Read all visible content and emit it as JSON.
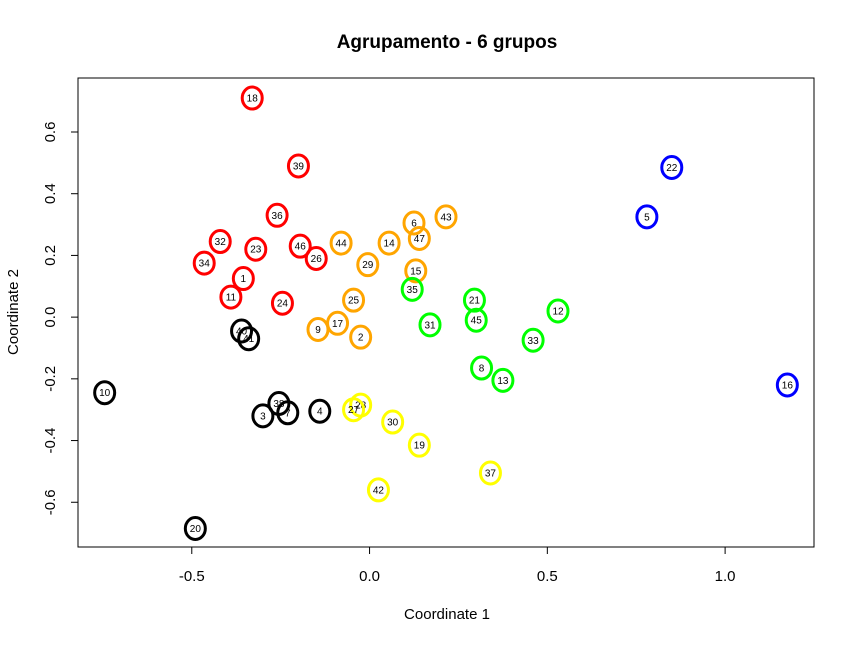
{
  "chart_data": {
    "type": "scatter",
    "title": "Agrupamento - 6 grupos",
    "xlabel": "Coordinate 1",
    "ylabel": "Coordinate 2",
    "xlim": [
      -0.82,
      1.25
    ],
    "ylim": [
      -0.745,
      0.775
    ],
    "x_ticks": [
      {
        "value": -0.5,
        "label": "-0.5"
      },
      {
        "value": 0.0,
        "label": "0.0"
      },
      {
        "value": 0.5,
        "label": "0.5"
      },
      {
        "value": 1.0,
        "label": "1.0"
      }
    ],
    "y_ticks": [
      {
        "value": -0.6,
        "label": "-0.6"
      },
      {
        "value": -0.4,
        "label": "-0.4"
      },
      {
        "value": -0.2,
        "label": "-0.2"
      },
      {
        "value": 0.0,
        "label": "0.0"
      },
      {
        "value": 0.2,
        "label": "0.2"
      },
      {
        "value": 0.4,
        "label": "0.4"
      },
      {
        "value": 0.6,
        "label": "0.6"
      }
    ],
    "grid": false,
    "legend": "none",
    "series": [
      {
        "color": "#ff0000",
        "points": [
          {
            "label": "18",
            "x": -0.33,
            "y": 0.71
          },
          {
            "label": "39",
            "x": -0.2,
            "y": 0.49
          },
          {
            "label": "36",
            "x": -0.26,
            "y": 0.33
          },
          {
            "label": "32",
            "x": -0.42,
            "y": 0.245
          },
          {
            "label": "23",
            "x": -0.32,
            "y": 0.22
          },
          {
            "label": "46",
            "x": -0.195,
            "y": 0.23
          },
          {
            "label": "26",
            "x": -0.15,
            "y": 0.19
          },
          {
            "label": "34",
            "x": -0.465,
            "y": 0.175
          },
          {
            "label": "1",
            "x": -0.355,
            "y": 0.125
          },
          {
            "label": "11",
            "x": -0.39,
            "y": 0.065
          },
          {
            "label": "24",
            "x": -0.245,
            "y": 0.045
          }
        ]
      },
      {
        "color": "#ffa500",
        "points": [
          {
            "label": "43",
            "x": 0.215,
            "y": 0.325
          },
          {
            "label": "6",
            "x": 0.125,
            "y": 0.305
          },
          {
            "label": "47",
            "x": 0.14,
            "y": 0.255
          },
          {
            "label": "44",
            "x": -0.08,
            "y": 0.24
          },
          {
            "label": "14",
            "x": 0.055,
            "y": 0.24
          },
          {
            "label": "29",
            "x": -0.005,
            "y": 0.17
          },
          {
            "label": "15",
            "x": 0.13,
            "y": 0.15
          },
          {
            "label": "25",
            "x": -0.045,
            "y": 0.055
          },
          {
            "label": "17",
            "x": -0.09,
            "y": -0.02
          },
          {
            "label": "9",
            "x": -0.145,
            "y": -0.04
          },
          {
            "label": "2",
            "x": -0.025,
            "y": -0.065
          }
        ]
      },
      {
        "color": "#00ff00",
        "points": [
          {
            "label": "35",
            "x": 0.12,
            "y": 0.09
          },
          {
            "label": "21",
            "x": 0.295,
            "y": 0.055
          },
          {
            "label": "12",
            "x": 0.53,
            "y": 0.02
          },
          {
            "label": "31",
            "x": 0.17,
            "y": -0.025
          },
          {
            "label": "45",
            "x": 0.3,
            "y": -0.01
          },
          {
            "label": "33",
            "x": 0.46,
            "y": -0.075
          },
          {
            "label": "8",
            "x": 0.315,
            "y": -0.165
          },
          {
            "label": "13",
            "x": 0.375,
            "y": -0.205
          }
        ]
      },
      {
        "color": "#0000ff",
        "points": [
          {
            "label": "22",
            "x": 0.85,
            "y": 0.485
          },
          {
            "label": "5",
            "x": 0.78,
            "y": 0.325
          },
          {
            "label": "16",
            "x": 1.175,
            "y": -0.22
          }
        ]
      },
      {
        "color": "#000000",
        "points": [
          {
            "label": "40",
            "x": -0.36,
            "y": -0.045
          },
          {
            "label": "41",
            "x": -0.34,
            "y": -0.07
          },
          {
            "label": "10",
            "x": -0.745,
            "y": -0.245
          },
          {
            "label": "38",
            "x": -0.255,
            "y": -0.28
          },
          {
            "label": "3",
            "x": -0.3,
            "y": -0.32
          },
          {
            "label": "7",
            "x": -0.23,
            "y": -0.31
          },
          {
            "label": "4",
            "x": -0.14,
            "y": -0.305
          },
          {
            "label": "20",
            "x": -0.49,
            "y": -0.685
          }
        ]
      },
      {
        "color": "#ffff00",
        "points": [
          {
            "label": "28",
            "x": -0.025,
            "y": -0.285
          },
          {
            "label": "27",
            "x": -0.045,
            "y": -0.3
          },
          {
            "label": "30",
            "x": 0.065,
            "y": -0.34
          },
          {
            "label": "19",
            "x": 0.14,
            "y": -0.415
          },
          {
            "label": "37",
            "x": 0.34,
            "y": -0.505
          },
          {
            "label": "42",
            "x": 0.025,
            "y": -0.56
          }
        ]
      }
    ]
  }
}
